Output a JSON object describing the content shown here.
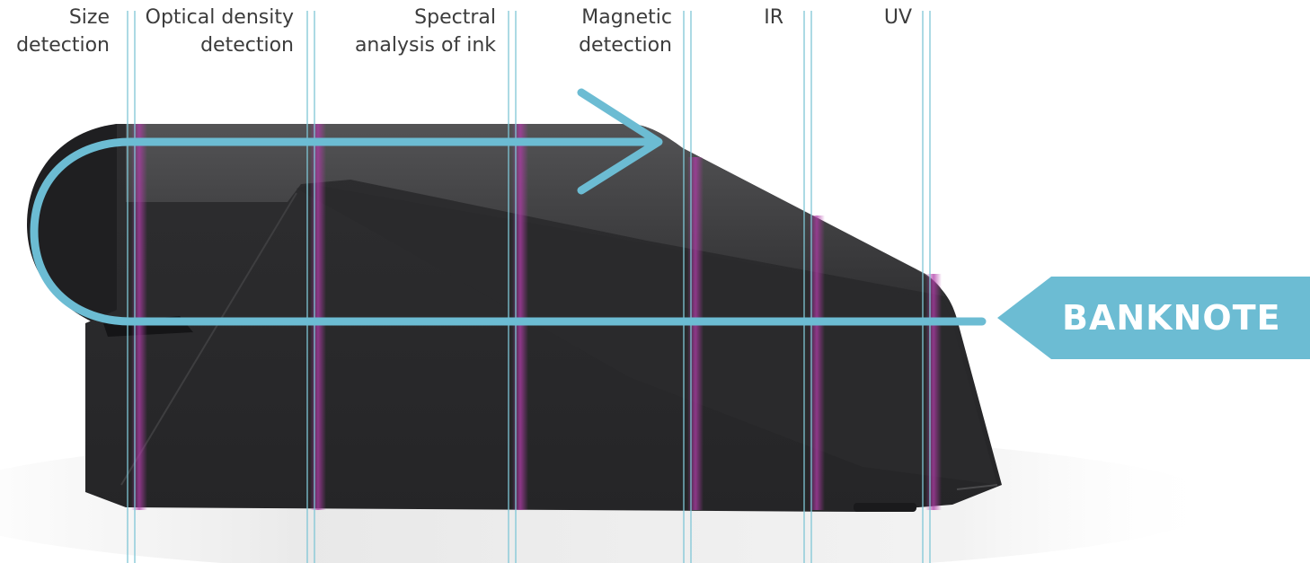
{
  "labels": {
    "size": [
      "Size",
      "detection"
    ],
    "optical": [
      "Optical density",
      "detection"
    ],
    "spectral": [
      "Spectral",
      "analysis of ink"
    ],
    "magnetic": [
      "Magnetic",
      "detection"
    ],
    "ir": [
      "IR"
    ],
    "uv": [
      "UV"
    ]
  },
  "banknote": "BANKNOTE",
  "colors": {
    "path": "#6cbcd3",
    "sensor_line": "#7fc6d6",
    "sensor_glow": "#b03ca8",
    "device": "#2b2b2d"
  }
}
